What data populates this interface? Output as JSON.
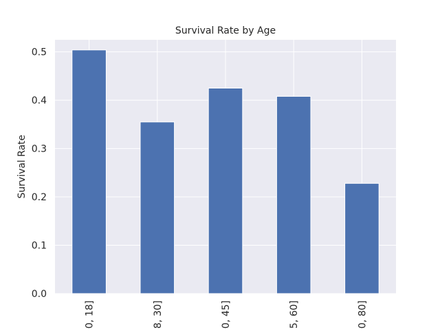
{
  "chart_data": {
    "type": "bar",
    "title": "Survival Rate by Age",
    "xlabel": "",
    "ylabel": "Survival Rate",
    "categories": [
      "0, 18]",
      "8, 30]",
      "0, 45]",
      "5, 60]",
      "0, 80]"
    ],
    "values": [
      0.504,
      0.355,
      0.425,
      0.408,
      0.228
    ],
    "ylim": [
      0,
      0.525
    ],
    "yticks": [
      "0.0",
      "0.1",
      "0.2",
      "0.3",
      "0.4",
      "0.5"
    ],
    "ytick_values": [
      0.0,
      0.1,
      0.2,
      0.3,
      0.4,
      0.5
    ],
    "grid": true,
    "legend": "none",
    "colors": {
      "bar": "#4c72b0",
      "plot_background": "#eaeaf2",
      "grid": "#ffffff",
      "text": "#262626"
    }
  }
}
